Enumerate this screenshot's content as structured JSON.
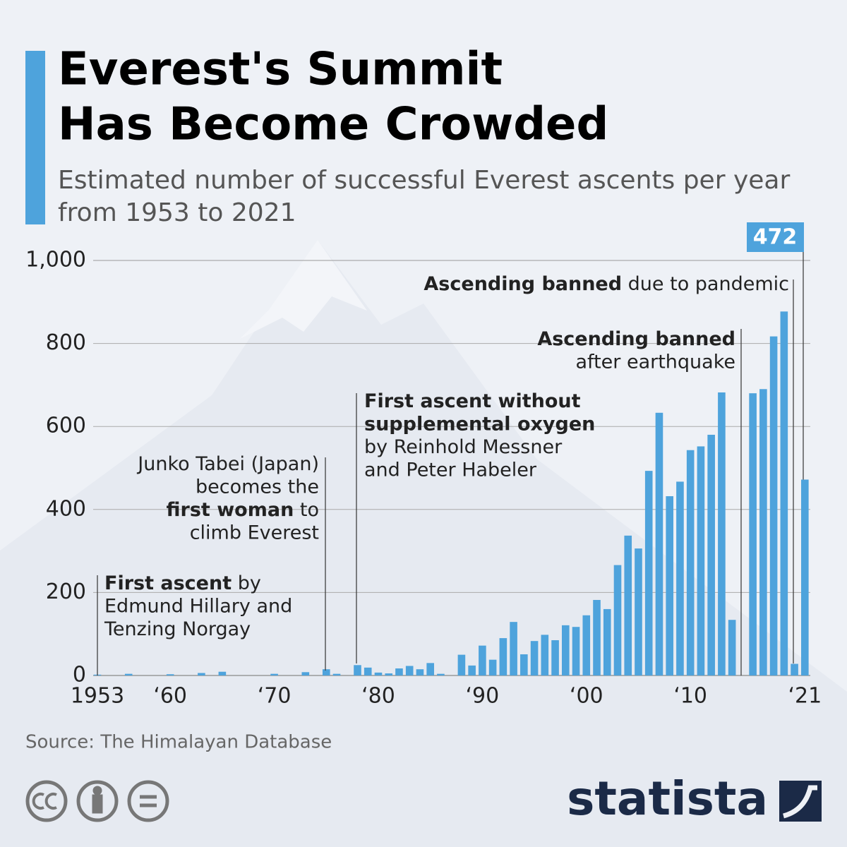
{
  "chart_data": {
    "type": "bar",
    "title": [
      "Everest's Summit",
      "Has Become Crowded"
    ],
    "subtitle": [
      "Estimated number of successful Everest ascents per year",
      "from 1953 to 2021"
    ],
    "categories": [
      "1953",
      null,
      null,
      null,
      null,
      null,
      null,
      "‘60",
      null,
      null,
      null,
      null,
      null,
      null,
      null,
      null,
      null,
      "‘70",
      null,
      null,
      null,
      null,
      null,
      null,
      null,
      null,
      null,
      "‘80",
      null,
      null,
      null,
      null,
      null,
      null,
      null,
      null,
      null,
      "‘90",
      null,
      null,
      null,
      null,
      null,
      null,
      null,
      null,
      null,
      "‘00",
      null,
      null,
      null,
      null,
      null,
      null,
      null,
      null,
      null,
      "‘10",
      null,
      null,
      null,
      null,
      null,
      null,
      null,
      null,
      null,
      null,
      "‘21"
    ],
    "values": [
      2,
      0,
      0,
      4,
      0,
      0,
      0,
      3,
      0,
      0,
      6,
      0,
      9,
      0,
      0,
      0,
      0,
      4,
      0,
      0,
      8,
      0,
      15,
      4,
      0,
      25,
      19,
      7,
      5,
      17,
      23,
      15,
      30,
      4,
      0,
      50,
      24,
      72,
      38,
      90,
      129,
      51,
      83,
      98,
      85,
      121,
      117,
      145,
      182,
      160,
      266,
      337,
      306,
      493,
      633,
      432,
      467,
      543,
      552,
      580,
      682,
      134,
      0,
      680,
      690,
      817,
      877,
      28,
      472
    ],
    "color": "#4ea3dc",
    "ylim": [
      0,
      1000
    ],
    "yticks": [
      0,
      200,
      400,
      600,
      800,
      {
        "value": 1000,
        "label": "1,000"
      }
    ],
    "grid": true,
    "annotations": [
      {
        "lines": [
          [
            {
              "text": "First ascent",
              "bold": true
            },
            {
              "text": " by",
              "bold": false
            }
          ],
          [
            {
              "text": "Edmund Hillary and",
              "bold": false
            }
          ],
          [
            {
              "text": "Tenzing Norgay",
              "bold": false
            }
          ]
        ]
      },
      {
        "lines": [
          [
            {
              "text": "Junko Tabei (Japan)",
              "bold": false
            }
          ],
          [
            {
              "text": "becomes the",
              "bold": false
            }
          ],
          [
            {
              "text": "first woman",
              "bold": true
            },
            {
              "text": " to",
              "bold": false
            }
          ],
          [
            {
              "text": "climb Everest",
              "bold": false
            }
          ]
        ]
      },
      {
        "lines": [
          [
            {
              "text": "First ascent without",
              "bold": true
            }
          ],
          [
            {
              "text": "supplemental oxygen",
              "bold": true
            }
          ],
          [
            {
              "text": "by Reinhold Messner",
              "bold": false
            }
          ],
          [
            {
              "text": "and Peter Habeler",
              "bold": false
            }
          ]
        ]
      },
      {
        "lines": [
          [
            {
              "text": "Ascending banned",
              "bold": true
            }
          ],
          [
            {
              "text": "after earthquake",
              "bold": false
            }
          ]
        ]
      },
      {
        "lines": [
          [
            {
              "text": "Ascending banned",
              "bold": true
            },
            {
              "text": " due to pandemic",
              "bold": false
            }
          ]
        ]
      }
    ],
    "source": "Source: The Himalayan Database",
    "brand": "statista"
  }
}
